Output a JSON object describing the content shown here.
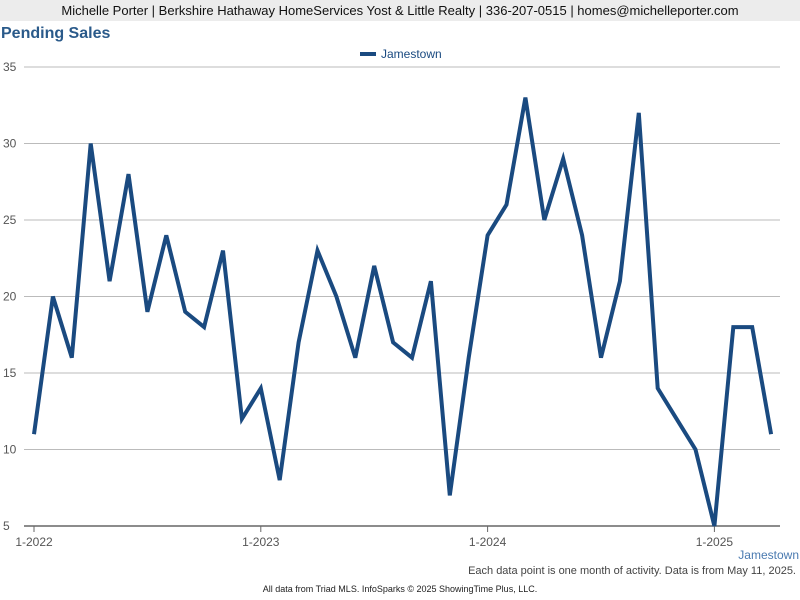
{
  "header": {
    "text": "Michelle Porter | Berkshire Hathaway HomeServices Yost & Little Realty | 336-207-0515 | homes@michelleporter.com"
  },
  "colors": {
    "line": "#1a4a80",
    "title": "#2a5a8a",
    "grid": "#bbbbbb",
    "header_bg": "#ececec"
  },
  "chart_data": {
    "type": "line",
    "title": "Pending Sales",
    "ylim": [
      5,
      35
    ],
    "yticks": [
      5,
      10,
      15,
      20,
      25,
      30,
      35
    ],
    "grid": true,
    "legend_position": "top-center",
    "x": [
      "1-2022",
      "2-2022",
      "3-2022",
      "4-2022",
      "5-2022",
      "6-2022",
      "7-2022",
      "8-2022",
      "9-2022",
      "10-2022",
      "11-2022",
      "12-2022",
      "1-2023",
      "2-2023",
      "3-2023",
      "4-2023",
      "5-2023",
      "6-2023",
      "7-2023",
      "8-2023",
      "9-2023",
      "10-2023",
      "11-2023",
      "12-2023",
      "1-2024",
      "2-2024",
      "3-2024",
      "4-2024",
      "5-2024",
      "6-2024",
      "7-2024",
      "8-2024",
      "9-2024",
      "10-2024",
      "11-2024",
      "12-2024",
      "1-2025",
      "2-2025",
      "3-2025",
      "4-2025"
    ],
    "xtick_labels": [
      "1-2022",
      "1-2023",
      "1-2024",
      "1-2025"
    ],
    "series": [
      {
        "name": "Jamestown",
        "values": [
          11,
          20,
          16,
          30,
          21,
          28,
          19,
          24,
          19,
          18,
          23,
          12,
          14,
          8,
          17,
          23,
          20,
          16,
          22,
          17,
          16,
          21,
          7,
          16,
          24,
          26,
          33,
          25,
          29,
          24,
          16,
          21,
          32,
          14,
          12,
          10,
          5,
          18,
          18,
          11
        ]
      }
    ]
  },
  "area_label": "Jamestown",
  "footnote": "Each data point is one month of activity. Data is from May 11, 2025.",
  "source": "All data from Triad MLS. InfoSparks © 2025 ShowingTime Plus, LLC."
}
